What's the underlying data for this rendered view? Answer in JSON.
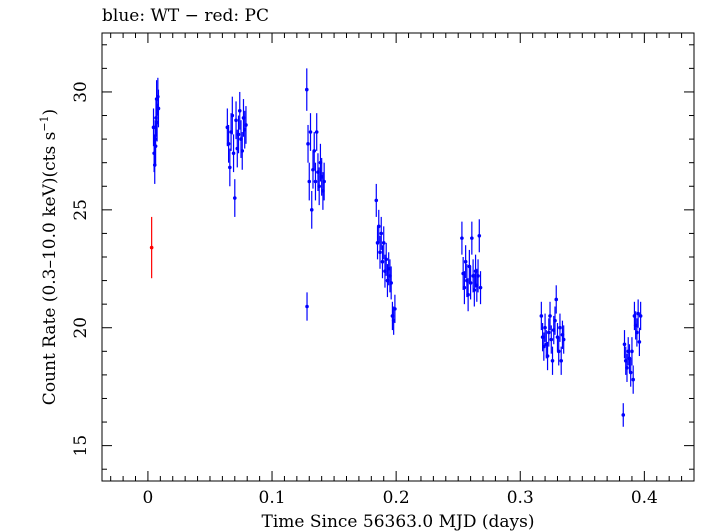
{
  "chart_data": {
    "type": "scatter",
    "title": "blue: WT − red: PC",
    "xlabel": "Time Since 56363.0 MJD (days)",
    "ylabel_parts": [
      "Count Rate (0.3–10.0 keV)(cts s",
      "−1",
      ")"
    ],
    "xlim": [
      -0.037,
      0.44
    ],
    "ylim": [
      13.5,
      32.5
    ],
    "x_ticks": [
      0,
      0.1,
      0.2,
      0.3,
      0.4
    ],
    "x_tick_labels": [
      "0",
      "0.1",
      "0.2",
      "0.3",
      "0.4"
    ],
    "y_ticks": [
      15,
      20,
      25,
      30
    ],
    "y_tick_labels": [
      "15",
      "20",
      "25",
      "30"
    ],
    "grid": false,
    "colors": {
      "WT": "#0000ff",
      "PC": "#ff0000"
    },
    "series": [
      {
        "mode": "WT",
        "points": [
          {
            "x": 0.0045,
            "y": 28.5,
            "err": 0.8
          },
          {
            "x": 0.005,
            "y": 27.4,
            "err": 0.8
          },
          {
            "x": 0.0055,
            "y": 26.9,
            "err": 0.8
          },
          {
            "x": 0.0058,
            "y": 28.0,
            "err": 0.8
          },
          {
            "x": 0.0062,
            "y": 27.7,
            "err": 0.8
          },
          {
            "x": 0.0065,
            "y": 28.9,
            "err": 0.8
          },
          {
            "x": 0.007,
            "y": 29.7,
            "err": 0.8
          },
          {
            "x": 0.0074,
            "y": 28.7,
            "err": 0.8
          },
          {
            "x": 0.008,
            "y": 29.8,
            "err": 0.8
          },
          {
            "x": 0.0085,
            "y": 29.3,
            "err": 0.8
          },
          {
            "x": 0.064,
            "y": 28.5,
            "err": 0.8
          },
          {
            "x": 0.065,
            "y": 27.8,
            "err": 0.8
          },
          {
            "x": 0.066,
            "y": 26.8,
            "err": 0.8
          },
          {
            "x": 0.067,
            "y": 28.3,
            "err": 0.8
          },
          {
            "x": 0.068,
            "y": 29.0,
            "err": 0.8
          },
          {
            "x": 0.069,
            "y": 27.4,
            "err": 0.8
          },
          {
            "x": 0.07,
            "y": 25.5,
            "err": 0.8
          },
          {
            "x": 0.071,
            "y": 28.8,
            "err": 0.8
          },
          {
            "x": 0.072,
            "y": 27.6,
            "err": 0.8
          },
          {
            "x": 0.073,
            "y": 28.2,
            "err": 0.8
          },
          {
            "x": 0.074,
            "y": 29.2,
            "err": 0.8
          },
          {
            "x": 0.075,
            "y": 28.0,
            "err": 0.8
          },
          {
            "x": 0.076,
            "y": 27.5,
            "err": 0.8
          },
          {
            "x": 0.077,
            "y": 28.9,
            "err": 0.8
          },
          {
            "x": 0.078,
            "y": 28.4,
            "err": 0.8
          },
          {
            "x": 0.079,
            "y": 28.6,
            "err": 0.8
          },
          {
            "x": 0.128,
            "y": 30.1,
            "err": 0.9
          },
          {
            "x": 0.1282,
            "y": 20.9,
            "err": 0.6
          },
          {
            "x": 0.129,
            "y": 27.8,
            "err": 0.8
          },
          {
            "x": 0.13,
            "y": 26.2,
            "err": 0.8
          },
          {
            "x": 0.131,
            "y": 28.3,
            "err": 0.8
          },
          {
            "x": 0.132,
            "y": 25.0,
            "err": 0.8
          },
          {
            "x": 0.133,
            "y": 26.7,
            "err": 0.8
          },
          {
            "x": 0.134,
            "y": 27.5,
            "err": 0.8
          },
          {
            "x": 0.135,
            "y": 26.2,
            "err": 0.8
          },
          {
            "x": 0.136,
            "y": 28.3,
            "err": 0.8
          },
          {
            "x": 0.137,
            "y": 26.6,
            "err": 0.8
          },
          {
            "x": 0.138,
            "y": 26.0,
            "err": 0.8
          },
          {
            "x": 0.139,
            "y": 27.0,
            "err": 0.8
          },
          {
            "x": 0.14,
            "y": 26.4,
            "err": 0.8
          },
          {
            "x": 0.141,
            "y": 25.8,
            "err": 0.8
          },
          {
            "x": 0.142,
            "y": 26.2,
            "err": 0.8
          },
          {
            "x": 0.184,
            "y": 25.4,
            "err": 0.7
          },
          {
            "x": 0.185,
            "y": 23.6,
            "err": 0.7
          },
          {
            "x": 0.186,
            "y": 24.3,
            "err": 0.7
          },
          {
            "x": 0.187,
            "y": 23.2,
            "err": 0.7
          },
          {
            "x": 0.188,
            "y": 24.0,
            "err": 0.7
          },
          {
            "x": 0.189,
            "y": 22.8,
            "err": 0.7
          },
          {
            "x": 0.19,
            "y": 23.6,
            "err": 0.7
          },
          {
            "x": 0.191,
            "y": 22.4,
            "err": 0.7
          },
          {
            "x": 0.192,
            "y": 22.9,
            "err": 0.7
          },
          {
            "x": 0.193,
            "y": 22.0,
            "err": 0.7
          },
          {
            "x": 0.194,
            "y": 22.5,
            "err": 0.7
          },
          {
            "x": 0.195,
            "y": 22.2,
            "err": 0.7
          },
          {
            "x": 0.196,
            "y": 21.9,
            "err": 0.7
          },
          {
            "x": 0.197,
            "y": 20.5,
            "err": 0.6
          },
          {
            "x": 0.198,
            "y": 20.3,
            "err": 0.6
          },
          {
            "x": 0.199,
            "y": 20.8,
            "err": 0.6
          },
          {
            "x": 0.253,
            "y": 23.8,
            "err": 0.7
          },
          {
            "x": 0.254,
            "y": 22.3,
            "err": 0.7
          },
          {
            "x": 0.255,
            "y": 21.7,
            "err": 0.7
          },
          {
            "x": 0.256,
            "y": 22.8,
            "err": 0.7
          },
          {
            "x": 0.257,
            "y": 22.0,
            "err": 0.7
          },
          {
            "x": 0.258,
            "y": 21.4,
            "err": 0.7
          },
          {
            "x": 0.259,
            "y": 22.6,
            "err": 0.7
          },
          {
            "x": 0.26,
            "y": 21.9,
            "err": 0.7
          },
          {
            "x": 0.261,
            "y": 23.8,
            "err": 0.7
          },
          {
            "x": 0.262,
            "y": 22.2,
            "err": 0.7
          },
          {
            "x": 0.263,
            "y": 21.6,
            "err": 0.7
          },
          {
            "x": 0.264,
            "y": 22.4,
            "err": 0.7
          },
          {
            "x": 0.265,
            "y": 21.8,
            "err": 0.7
          },
          {
            "x": 0.266,
            "y": 22.2,
            "err": 0.7
          },
          {
            "x": 0.267,
            "y": 23.9,
            "err": 0.7
          },
          {
            "x": 0.268,
            "y": 21.7,
            "err": 0.7
          },
          {
            "x": 0.317,
            "y": 20.5,
            "err": 0.6
          },
          {
            "x": 0.318,
            "y": 19.6,
            "err": 0.6
          },
          {
            "x": 0.319,
            "y": 19.2,
            "err": 0.6
          },
          {
            "x": 0.32,
            "y": 20.0,
            "err": 0.6
          },
          {
            "x": 0.321,
            "y": 19.3,
            "err": 0.6
          },
          {
            "x": 0.322,
            "y": 18.8,
            "err": 0.6
          },
          {
            "x": 0.323,
            "y": 19.8,
            "err": 0.6
          },
          {
            "x": 0.324,
            "y": 20.5,
            "err": 0.6
          },
          {
            "x": 0.325,
            "y": 19.5,
            "err": 0.6
          },
          {
            "x": 0.326,
            "y": 18.6,
            "err": 0.6
          },
          {
            "x": 0.327,
            "y": 19.9,
            "err": 0.6
          },
          {
            "x": 0.328,
            "y": 20.3,
            "err": 0.6
          },
          {
            "x": 0.329,
            "y": 21.2,
            "err": 0.6
          },
          {
            "x": 0.33,
            "y": 19.6,
            "err": 0.6
          },
          {
            "x": 0.331,
            "y": 19.0,
            "err": 0.6
          },
          {
            "x": 0.332,
            "y": 20.0,
            "err": 0.6
          },
          {
            "x": 0.333,
            "y": 18.6,
            "err": 0.6
          },
          {
            "x": 0.334,
            "y": 19.7,
            "err": 0.6
          },
          {
            "x": 0.335,
            "y": 19.5,
            "err": 0.6
          },
          {
            "x": 0.383,
            "y": 16.3,
            "err": 0.5
          },
          {
            "x": 0.384,
            "y": 19.3,
            "err": 0.6
          },
          {
            "x": 0.385,
            "y": 18.6,
            "err": 0.6
          },
          {
            "x": 0.386,
            "y": 18.3,
            "err": 0.6
          },
          {
            "x": 0.387,
            "y": 19.0,
            "err": 0.6
          },
          {
            "x": 0.388,
            "y": 18.7,
            "err": 0.6
          },
          {
            "x": 0.389,
            "y": 18.1,
            "err": 0.6
          },
          {
            "x": 0.39,
            "y": 19.0,
            "err": 0.6
          },
          {
            "x": 0.391,
            "y": 17.8,
            "err": 0.6
          },
          {
            "x": 0.392,
            "y": 20.5,
            "err": 0.6
          },
          {
            "x": 0.393,
            "y": 20.1,
            "err": 0.6
          },
          {
            "x": 0.394,
            "y": 19.8,
            "err": 0.6
          },
          {
            "x": 0.395,
            "y": 20.6,
            "err": 0.6
          },
          {
            "x": 0.396,
            "y": 19.4,
            "err": 0.6
          },
          {
            "x": 0.397,
            "y": 20.5,
            "err": 0.6
          }
        ]
      },
      {
        "mode": "PC",
        "points": [
          {
            "x": 0.003,
            "y": 23.4,
            "err": 1.3
          }
        ]
      }
    ]
  }
}
